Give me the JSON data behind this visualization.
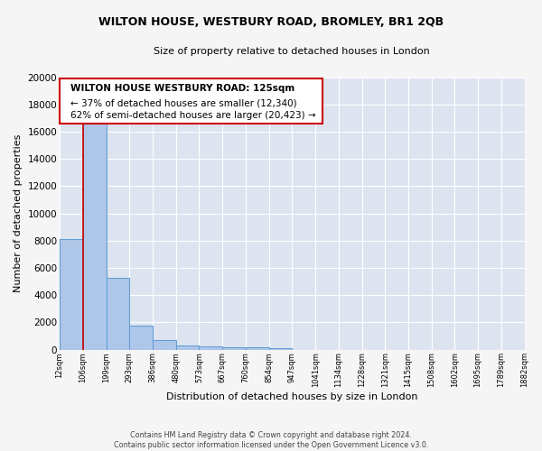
{
  "title": "WILTON HOUSE, WESTBURY ROAD, BROMLEY, BR1 2QB",
  "subtitle": "Size of property relative to detached houses in London",
  "xlabel": "Distribution of detached houses by size in London",
  "ylabel": "Number of detached properties",
  "bin_edges": [
    12,
    106,
    199,
    293,
    386,
    480,
    573,
    667,
    760,
    854,
    947,
    1041,
    1134,
    1228,
    1321,
    1415,
    1508,
    1602,
    1695,
    1789,
    1882
  ],
  "bar_heights": [
    8100,
    16700,
    5300,
    1750,
    700,
    300,
    230,
    200,
    190,
    130,
    0,
    0,
    0,
    0,
    0,
    0,
    0,
    0,
    0,
    0
  ],
  "bar_color": "#aec6e8",
  "bar_edge_color": "#5b9bd5",
  "highlight_color": "#cc0000",
  "annotation_text_line1": "WILTON HOUSE WESTBURY ROAD: 125sqm",
  "annotation_text_line2": "← 37% of detached houses are smaller (12,340)",
  "annotation_text_line3": "62% of semi-detached houses are larger (20,423) →",
  "annotation_box_color": "#ffffff",
  "annotation_border_color": "#cc0000",
  "ylim": [
    0,
    20000
  ],
  "yticks": [
    0,
    2000,
    4000,
    6000,
    8000,
    10000,
    12000,
    14000,
    16000,
    18000,
    20000
  ],
  "background_color": "#dde4f0",
  "fig_background_color": "#f5f5f5",
  "grid_color": "#ffffff",
  "footer_line1": "Contains HM Land Registry data © Crown copyright and database right 2024.",
  "footer_line2": "Contains public sector information licensed under the Open Government Licence v3.0."
}
